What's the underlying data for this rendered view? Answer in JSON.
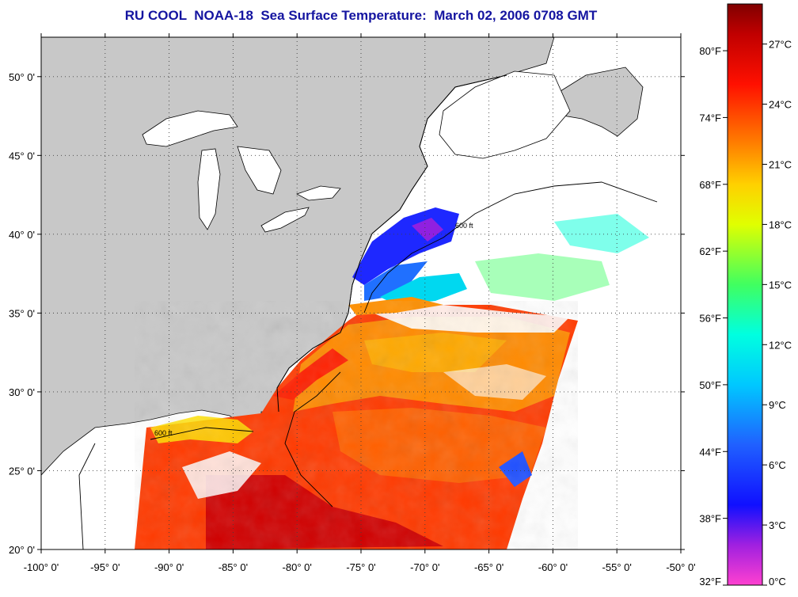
{
  "title": "RU COOL  NOAA-18  Sea Surface Temperature:  March 02, 2006 0708 GMT",
  "map": {
    "lon_range": [
      -100,
      -50
    ],
    "lat_range": [
      20,
      52.5
    ],
    "lon_ticks": [
      {
        "value": -100,
        "label": "-100° 0'"
      },
      {
        "value": -95,
        "label": "-95° 0'"
      },
      {
        "value": -90,
        "label": "-90° 0'"
      },
      {
        "value": -85,
        "label": "-85° 0'"
      },
      {
        "value": -80,
        "label": "-80° 0'"
      },
      {
        "value": -75,
        "label": "-75° 0'"
      },
      {
        "value": -70,
        "label": "-70° 0'"
      },
      {
        "value": -65,
        "label": "-65° 0'"
      },
      {
        "value": -60,
        "label": "-60° 0'"
      },
      {
        "value": -55,
        "label": "-55° 0'"
      },
      {
        "value": -50,
        "label": "-50° 0'"
      }
    ],
    "lat_ticks": [
      {
        "value": 20,
        "label": "20° 0'"
      },
      {
        "value": 25,
        "label": "25° 0'"
      },
      {
        "value": 30,
        "label": "30° 0'"
      },
      {
        "value": 35,
        "label": "35° 0'"
      },
      {
        "value": 40,
        "label": "40° 0'"
      },
      {
        "value": 45,
        "label": "45° 0'"
      },
      {
        "value": 50,
        "label": "50° 0'"
      }
    ],
    "grid": "dotted",
    "contour_labels": [
      "600 ft"
    ],
    "colors": {
      "land": "#c8c8c8",
      "no_data": "#ffffff",
      "coast": "#000000"
    }
  },
  "colorbar": {
    "celsius_range": [
      0,
      29
    ],
    "celsius_ticks": [
      {
        "value": 0,
        "label": "0°C"
      },
      {
        "value": 3,
        "label": "3°C"
      },
      {
        "value": 6,
        "label": "6°C"
      },
      {
        "value": 9,
        "label": "9°C"
      },
      {
        "value": 12,
        "label": "12°C"
      },
      {
        "value": 15,
        "label": "15°C"
      },
      {
        "value": 18,
        "label": "18°C"
      },
      {
        "value": 21,
        "label": "21°C"
      },
      {
        "value": 24,
        "label": "24°C"
      },
      {
        "value": 27,
        "label": "27°C"
      }
    ],
    "fahrenheit_ticks": [
      {
        "value": 32,
        "label": "32°F"
      },
      {
        "value": 38,
        "label": "38°F"
      },
      {
        "value": 44,
        "label": "44°F"
      },
      {
        "value": 50,
        "label": "50°F"
      },
      {
        "value": 56,
        "label": "56°F"
      },
      {
        "value": 62,
        "label": "62°F"
      },
      {
        "value": 68,
        "label": "68°F"
      },
      {
        "value": 74,
        "label": "74°F"
      },
      {
        "value": 80,
        "label": "80°F"
      }
    ],
    "stops": [
      {
        "c": 0,
        "color": "#ff40d0"
      },
      {
        "c": 2,
        "color": "#a020e0"
      },
      {
        "c": 4,
        "color": "#1010ff"
      },
      {
        "c": 7,
        "color": "#2060ff"
      },
      {
        "c": 10,
        "color": "#00c8ff"
      },
      {
        "c": 12.5,
        "color": "#00ffe0"
      },
      {
        "c": 15,
        "color": "#40ff60"
      },
      {
        "c": 18,
        "color": "#e0ff00"
      },
      {
        "c": 20,
        "color": "#ffd000"
      },
      {
        "c": 22,
        "color": "#ff8000"
      },
      {
        "c": 25,
        "color": "#ff1000"
      },
      {
        "c": 27.5,
        "color": "#c00000"
      },
      {
        "c": 29,
        "color": "#800000"
      }
    ]
  }
}
